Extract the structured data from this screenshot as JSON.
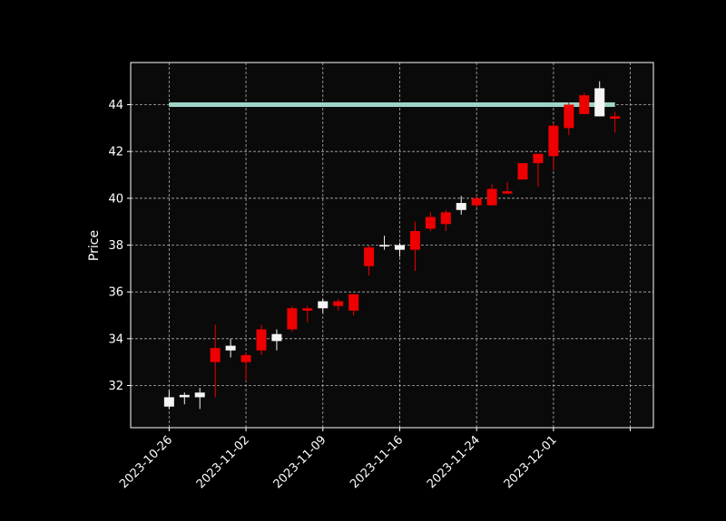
{
  "chart_data": {
    "type": "candlestick",
    "title": "",
    "xlabel": "",
    "ylabel": "Price",
    "ylim": [
      30.2,
      45.8
    ],
    "y_ticks": [
      32,
      34,
      36,
      38,
      40,
      42,
      44
    ],
    "x_tick_labels": [
      "2023-10-26",
      "2023-11-02",
      "2023-11-09",
      "2023-11-16",
      "2023-11-24",
      "2023-12-01",
      ""
    ],
    "x_tick_index": [
      0,
      5,
      10,
      15,
      20,
      25,
      30
    ],
    "xlim_index": [
      -2.5,
      31.5
    ],
    "grid": true,
    "up_color": "#f5f5f5",
    "down_color": "#ee0000",
    "hline": {
      "value": 44.0,
      "start_index": 0,
      "end_index": 29,
      "color": "#9fd4c9"
    },
    "candles": [
      {
        "o": 31.1,
        "h": 31.8,
        "l": 31.0,
        "c": 31.5
      },
      {
        "o": 31.5,
        "h": 31.7,
        "l": 31.2,
        "c": 31.6
      },
      {
        "o": 31.5,
        "h": 31.9,
        "l": 31.0,
        "c": 31.7
      },
      {
        "o": 33.6,
        "h": 34.6,
        "l": 31.5,
        "c": 33.0
      },
      {
        "o": 33.5,
        "h": 34.0,
        "l": 33.2,
        "c": 33.7
      },
      {
        "o": 33.3,
        "h": 33.4,
        "l": 32.2,
        "c": 33.0
      },
      {
        "o": 34.4,
        "h": 34.6,
        "l": 33.3,
        "c": 33.5
      },
      {
        "o": 33.9,
        "h": 34.4,
        "l": 33.5,
        "c": 34.2
      },
      {
        "o": 35.3,
        "h": 35.4,
        "l": 34.3,
        "c": 34.4
      },
      {
        "o": 35.3,
        "h": 35.4,
        "l": 34.7,
        "c": 35.2
      },
      {
        "o": 35.3,
        "h": 35.7,
        "l": 35.1,
        "c": 35.6
      },
      {
        "o": 35.6,
        "h": 35.7,
        "l": 35.2,
        "c": 35.4
      },
      {
        "o": 35.9,
        "h": 35.9,
        "l": 35.0,
        "c": 35.2
      },
      {
        "o": 37.9,
        "h": 38.0,
        "l": 36.7,
        "c": 37.1
      },
      {
        "o": 38.0,
        "h": 38.4,
        "l": 37.8,
        "c": 38.0
      },
      {
        "o": 37.8,
        "h": 38.1,
        "l": 37.5,
        "c": 38.0
      },
      {
        "o": 38.6,
        "h": 39.0,
        "l": 36.9,
        "c": 37.8
      },
      {
        "o": 39.2,
        "h": 39.4,
        "l": 38.6,
        "c": 38.7
      },
      {
        "o": 39.4,
        "h": 39.5,
        "l": 38.6,
        "c": 38.9
      },
      {
        "o": 39.5,
        "h": 40.1,
        "l": 39.3,
        "c": 39.8
      },
      {
        "o": 40.0,
        "h": 40.1,
        "l": 39.6,
        "c": 39.7
      },
      {
        "o": 40.4,
        "h": 40.6,
        "l": 39.7,
        "c": 39.7
      },
      {
        "o": 40.3,
        "h": 40.7,
        "l": 40.2,
        "c": 40.2
      },
      {
        "o": 41.5,
        "h": 41.5,
        "l": 40.8,
        "c": 40.8
      },
      {
        "o": 41.9,
        "h": 41.9,
        "l": 40.5,
        "c": 41.5
      },
      {
        "o": 43.1,
        "h": 43.2,
        "l": 41.2,
        "c": 41.8
      },
      {
        "o": 44.0,
        "h": 44.1,
        "l": 42.7,
        "c": 43.0
      },
      {
        "o": 44.4,
        "h": 44.5,
        "l": 43.6,
        "c": 43.6
      },
      {
        "o": 43.5,
        "h": 45.0,
        "l": 43.5,
        "c": 44.7
      },
      {
        "o": 43.5,
        "h": 43.7,
        "l": 42.8,
        "c": 43.4
      }
    ]
  }
}
